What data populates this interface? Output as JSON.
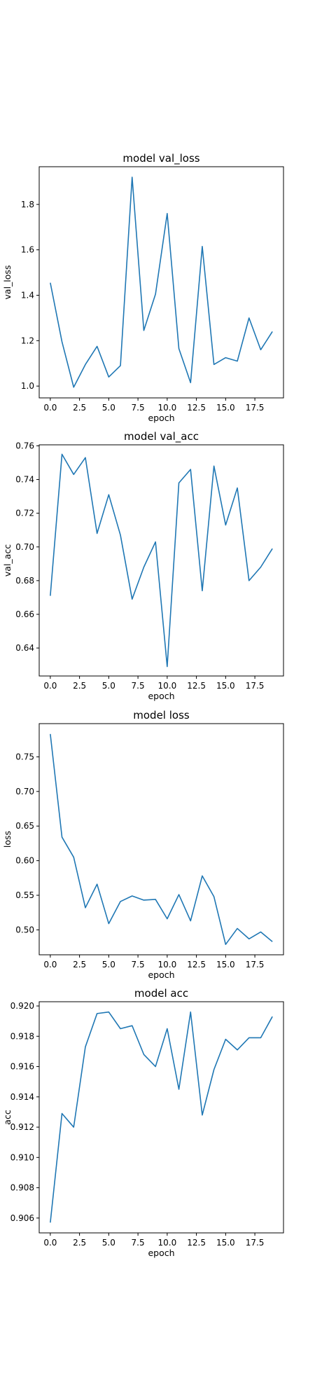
{
  "chart_data": [
    {
      "type": "line",
      "title": "model val_loss",
      "xlabel": "epoch",
      "ylabel": "val_loss",
      "x": [
        0,
        1,
        2,
        3,
        4,
        5,
        6,
        7,
        8,
        9,
        10,
        11,
        12,
        13,
        14,
        15,
        16,
        17,
        18,
        19
      ],
      "series": [
        {
          "values": [
            1.455,
            1.195,
            0.995,
            1.095,
            1.175,
            1.04,
            1.09,
            1.92,
            1.245,
            1.405,
            1.76,
            1.165,
            1.015,
            1.615,
            1.095,
            1.125,
            1.11,
            1.3,
            1.16,
            1.24
          ],
          "color": "#1f77b4"
        }
      ],
      "xlim": [
        -0.95,
        19.95
      ],
      "ylim": [
        0.948,
        1.966
      ],
      "xticks": [
        0,
        2.5,
        5,
        7.5,
        10,
        12.5,
        15,
        17.5
      ],
      "xtick_labels": [
        "0.0",
        "2.5",
        "5.0",
        "7.5",
        "10.0",
        "12.5",
        "15.0",
        "17.5"
      ],
      "yticks": [
        1.0,
        1.2,
        1.4,
        1.6,
        1.8
      ],
      "ytick_labels": [
        "1.0",
        "1.2",
        "1.4",
        "1.6",
        "1.8"
      ],
      "grid": false
    },
    {
      "type": "line",
      "title": "model val_acc",
      "xlabel": "epoch",
      "ylabel": "val_acc",
      "x": [
        0,
        1,
        2,
        3,
        4,
        5,
        6,
        7,
        8,
        9,
        10,
        11,
        12,
        13,
        14,
        15,
        16,
        17,
        18,
        19
      ],
      "series": [
        {
          "values": [
            0.671,
            0.755,
            0.743,
            0.753,
            0.708,
            0.731,
            0.707,
            0.669,
            0.688,
            0.703,
            0.629,
            0.738,
            0.746,
            0.674,
            0.748,
            0.713,
            0.735,
            0.68,
            0.688,
            0.699
          ],
          "color": "#1f77b4"
        }
      ],
      "xlim": [
        -0.95,
        19.95
      ],
      "ylim": [
        0.6234,
        0.7606
      ],
      "xticks": [
        0,
        2.5,
        5,
        7.5,
        10,
        12.5,
        15,
        17.5
      ],
      "xtick_labels": [
        "0.0",
        "2.5",
        "5.0",
        "7.5",
        "10.0",
        "12.5",
        "15.0",
        "17.5"
      ],
      "yticks": [
        0.64,
        0.66,
        0.68,
        0.7,
        0.72,
        0.74,
        0.76
      ],
      "ytick_labels": [
        "0.64",
        "0.66",
        "0.68",
        "0.70",
        "0.72",
        "0.74",
        "0.76"
      ],
      "grid": false
    },
    {
      "type": "line",
      "title": "model loss",
      "xlabel": "epoch",
      "ylabel": "loss",
      "x": [
        0,
        1,
        2,
        3,
        4,
        5,
        6,
        7,
        8,
        9,
        10,
        11,
        12,
        13,
        14,
        15,
        16,
        17,
        18,
        19
      ],
      "series": [
        {
          "values": [
            0.783,
            0.634,
            0.605,
            0.532,
            0.566,
            0.509,
            0.541,
            0.549,
            0.543,
            0.544,
            0.516,
            0.551,
            0.513,
            0.578,
            0.548,
            0.479,
            0.502,
            0.487,
            0.497,
            0.483
          ],
          "color": "#1f77b4"
        }
      ],
      "xlim": [
        -0.95,
        19.95
      ],
      "ylim": [
        0.464,
        0.798
      ],
      "xticks": [
        0,
        2.5,
        5,
        7.5,
        10,
        12.5,
        15,
        17.5
      ],
      "xtick_labels": [
        "0.0",
        "2.5",
        "5.0",
        "7.5",
        "10.0",
        "12.5",
        "15.0",
        "17.5"
      ],
      "yticks": [
        0.5,
        0.55,
        0.6,
        0.65,
        0.7,
        0.75
      ],
      "ytick_labels": [
        "0.50",
        "0.55",
        "0.60",
        "0.65",
        "0.70",
        "0.75"
      ],
      "grid": false
    },
    {
      "type": "line",
      "title": "model acc",
      "xlabel": "epoch",
      "ylabel": "acc",
      "x": [
        0,
        1,
        2,
        3,
        4,
        5,
        6,
        7,
        8,
        9,
        10,
        11,
        12,
        13,
        14,
        15,
        16,
        17,
        18,
        19
      ],
      "series": [
        {
          "values": [
            0.9057,
            0.9129,
            0.912,
            0.9173,
            0.9195,
            0.9196,
            0.9185,
            0.9187,
            0.9168,
            0.916,
            0.9185,
            0.9145,
            0.9196,
            0.9128,
            0.9158,
            0.9178,
            0.9171,
            0.9179,
            0.9179,
            0.9193
          ],
          "color": "#1f77b4"
        }
      ],
      "xlim": [
        -0.95,
        19.95
      ],
      "ylim": [
        0.90502,
        0.92028
      ],
      "xticks": [
        0,
        2.5,
        5,
        7.5,
        10,
        12.5,
        15,
        17.5
      ],
      "xtick_labels": [
        "0.0",
        "2.5",
        "5.0",
        "7.5",
        "10.0",
        "12.5",
        "15.0",
        "17.5"
      ],
      "yticks": [
        0.906,
        0.908,
        0.91,
        0.912,
        0.914,
        0.916,
        0.918,
        0.92
      ],
      "ytick_labels": [
        "0.906",
        "0.908",
        "0.910",
        "0.912",
        "0.914",
        "0.916",
        "0.918",
        "0.920"
      ],
      "grid": false
    }
  ]
}
